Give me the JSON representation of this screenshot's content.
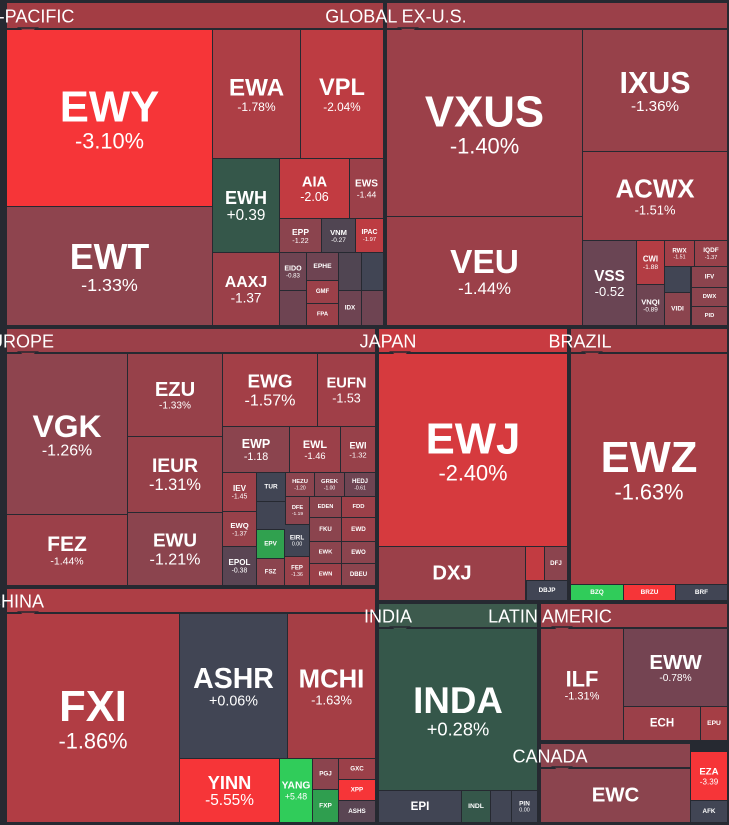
{
  "groups": [
    {
      "title": "ASIA-PACIFIC",
      "color": "#a33d44",
      "tiles": [
        {
          "ticker": "EWY",
          "change": "-3.10%",
          "color": "#f63538"
        },
        {
          "ticker": "EWT",
          "change": "-1.33%",
          "color": "#8e444e"
        },
        {
          "ticker": "EWA",
          "change": "-1.78%",
          "color": "#ad3e45"
        },
        {
          "ticker": "VPL",
          "change": "-2.04%",
          "color": "#bd3c42"
        },
        {
          "ticker": "EWH",
          "change": "+0.39",
          "color": "#35574a"
        },
        {
          "ticker": "AIA",
          "change": "-2.06",
          "color": "#c23b41"
        },
        {
          "ticker": "EWS",
          "change": "-1.44",
          "color": "#9b4049"
        },
        {
          "ticker": "EPP",
          "change": "-1.22",
          "color": "#8b444e"
        },
        {
          "ticker": "VNM",
          "change": "-0.27",
          "color": "#504552"
        },
        {
          "ticker": "IPAC",
          "change": "-1.97",
          "color": "#bd3c42"
        },
        {
          "ticker": "AAXJ",
          "change": "-1.37",
          "color": "#9b4049"
        },
        {
          "ticker": "EIDO",
          "change": "-0.83",
          "color": "#6e4452"
        },
        {
          "ticker": "EPHE",
          "color": "#6e4452"
        },
        {
          "ticker": "GMF",
          "color": "#9b4049"
        },
        {
          "ticker": "FPA",
          "color": "#9b4049"
        },
        {
          "ticker": "IDX",
          "color": "#6e4452"
        }
      ]
    },
    {
      "title": "GLOBAL EX-U.S.",
      "color": "#9b4049",
      "tiles": [
        {
          "ticker": "VXUS",
          "change": "-1.40%",
          "color": "#9b4049"
        },
        {
          "ticker": "VEU",
          "change": "-1.44%",
          "color": "#9b4049"
        },
        {
          "ticker": "IXUS",
          "change": "-1.36%",
          "color": "#97414a"
        },
        {
          "ticker": "ACWX",
          "change": "-1.51%",
          "color": "#a03f48"
        },
        {
          "ticker": "VSS",
          "change": "-0.52",
          "color": "#6a4554"
        },
        {
          "ticker": "CWI",
          "change": "-1.88",
          "color": "#b33d44"
        },
        {
          "ticker": "RWX",
          "change": "-1.51",
          "color": "#a03f48"
        },
        {
          "ticker": "IQDF",
          "change": "-1.37",
          "color": "#97414a"
        },
        {
          "ticker": "IFV",
          "color": "#8b444e"
        },
        {
          "ticker": "VNQI",
          "change": "-0.89",
          "color": "#6e4452"
        },
        {
          "ticker": "VIDI",
          "color": "#8b444e"
        },
        {
          "ticker": "DWX",
          "color": "#8b444e"
        },
        {
          "ticker": "PID",
          "color": "#8b444e"
        }
      ]
    },
    {
      "title": "EUROPE",
      "color": "#9b4049",
      "tiles": [
        {
          "ticker": "VGK",
          "change": "-1.26%",
          "color": "#8e444e"
        },
        {
          "ticker": "FEZ",
          "change": "-1.44%",
          "color": "#9b4049"
        },
        {
          "ticker": "EZU",
          "change": "-1.33%",
          "color": "#97414a"
        },
        {
          "ticker": "IEUR",
          "change": "-1.31%",
          "color": "#97414a"
        },
        {
          "ticker": "EWU",
          "change": "-1.21%",
          "color": "#8b444e"
        },
        {
          "ticker": "EWG",
          "change": "-1.57%",
          "color": "#a33f47"
        },
        {
          "ticker": "EUFN",
          "change": "-1.53",
          "color": "#a03f48"
        },
        {
          "ticker": "EWP",
          "change": "-1.18",
          "color": "#8b444e"
        },
        {
          "ticker": "EWL",
          "change": "-1.46",
          "color": "#9b4049"
        },
        {
          "ticker": "EWI",
          "change": "-1.32",
          "color": "#97414a"
        },
        {
          "ticker": "IEV",
          "change": "-1.45",
          "color": "#9b4049"
        },
        {
          "ticker": "TUR",
          "color": "#414554"
        },
        {
          "ticker": "HEZU",
          "change": "-1.20",
          "color": "#8b444e"
        },
        {
          "ticker": "GREK",
          "change": "-1.00",
          "color": "#804450"
        },
        {
          "ticker": "HEDJ",
          "change": "-0.61",
          "color": "#6e4452"
        },
        {
          "ticker": "DFE",
          "change": "-1.19",
          "color": "#8b444e"
        },
        {
          "ticker": "EDEN",
          "color": "#8b444e"
        },
        {
          "ticker": "FDD",
          "color": "#9b4049"
        },
        {
          "ticker": "EWQ",
          "change": "-1.37",
          "color": "#97414a"
        },
        {
          "ticker": "FKU",
          "color": "#8b444e"
        },
        {
          "ticker": "EWD",
          "color": "#9b4049"
        },
        {
          "ticker": "EPV",
          "color": "#30a14f"
        },
        {
          "ticker": "EIRL",
          "change": "0.00",
          "color": "#414554"
        },
        {
          "ticker": "EWK",
          "color": "#8b444e"
        },
        {
          "ticker": "EWO",
          "color": "#8b444e"
        },
        {
          "ticker": "EPOL",
          "change": "-0.38",
          "color": "#5a4553"
        },
        {
          "ticker": "FSZ",
          "color": "#8b444e"
        },
        {
          "ticker": "FEP",
          "change": "-1.36",
          "color": "#97414a"
        },
        {
          "ticker": "EWN",
          "color": "#9b4049"
        },
        {
          "ticker": "DBEU",
          "color": "#8b444e"
        }
      ]
    },
    {
      "title": "JAPAN",
      "color": "#c83b41",
      "tiles": [
        {
          "ticker": "EWJ",
          "change": "-2.40%",
          "color": "#d63a3e"
        },
        {
          "ticker": "DXJ",
          "color": "#9b4049"
        },
        {
          "ticker": "DFJ",
          "color": "#8b444e"
        },
        {
          "ticker": "DBJP",
          "color": "#414554"
        }
      ]
    },
    {
      "title": "BRAZIL",
      "color": "#a53e45",
      "tiles": [
        {
          "ticker": "EWZ",
          "change": "-1.63%",
          "color": "#a53e45"
        },
        {
          "ticker": "BZQ",
          "color": "#30cc5a"
        },
        {
          "ticker": "BRZU",
          "color": "#f63538"
        },
        {
          "ticker": "BRF",
          "color": "#414554"
        }
      ]
    },
    {
      "title": "CHINA",
      "color": "#ad3e45",
      "tiles": [
        {
          "ticker": "FXI",
          "change": "-1.86%",
          "color": "#b13d44"
        },
        {
          "ticker": "ASHR",
          "change": "+0.06%",
          "color": "#414554"
        },
        {
          "ticker": "MCHI",
          "change": "-1.63%",
          "color": "#a53e45"
        },
        {
          "ticker": "YINN",
          "change": "-5.55%",
          "color": "#f63538"
        },
        {
          "ticker": "YANG",
          "change": "+5.48",
          "color": "#30cc5a"
        },
        {
          "ticker": "PGJ",
          "color": "#8b444e"
        },
        {
          "ticker": "FXP",
          "color": "#2f9e4f"
        },
        {
          "ticker": "GXC",
          "color": "#9b4049"
        },
        {
          "ticker": "XPP",
          "color": "#f63538"
        },
        {
          "ticker": "ASHS",
          "color": "#5a4553"
        }
      ]
    },
    {
      "title": "INDIA",
      "color": "#3d5a4d",
      "tiles": [
        {
          "ticker": "INDA",
          "change": "+0.28%",
          "color": "#35574a"
        },
        {
          "ticker": "EPI",
          "color": "#414554"
        },
        {
          "ticker": "INDL",
          "color": "#35574a"
        },
        {
          "ticker": "PIN",
          "change": "0.00",
          "color": "#414554"
        }
      ]
    },
    {
      "title": "LATIN AMERIC",
      "color": "#9b4049",
      "tiles": [
        {
          "ticker": "ILF",
          "change": "-1.31%",
          "color": "#97414a"
        },
        {
          "ticker": "EWW",
          "change": "-0.78%",
          "color": "#744452"
        },
        {
          "ticker": "ECH",
          "color": "#9b4049"
        },
        {
          "ticker": "EPU",
          "color": "#a53e45"
        }
      ]
    },
    {
      "title": "CANADA",
      "color": "#8b444e",
      "tiles": [
        {
          "ticker": "EWC",
          "color": "#8b444e"
        }
      ]
    },
    {
      "tiles": [
        {
          "ticker": "EZA",
          "change": "-3.39",
          "color": "#f63538"
        },
        {
          "ticker": "AFK",
          "color": "#414554"
        }
      ]
    }
  ]
}
